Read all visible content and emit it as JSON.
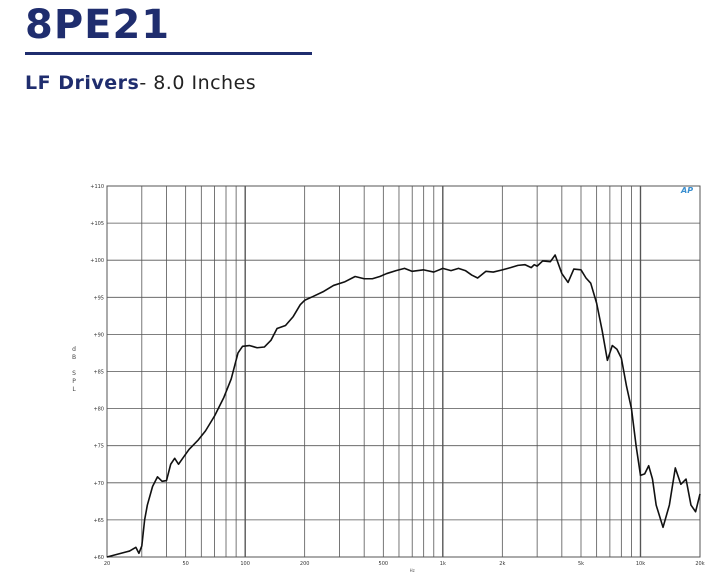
{
  "header": {
    "model": "8PE21",
    "category": "LF Drivers",
    "size": "- 8.0 Inches"
  },
  "logo": {
    "text": "AP",
    "color": "#3a8fd0"
  },
  "colors": {
    "brand": "#1f2d6e",
    "grid": "#555555",
    "curve": "#111111"
  },
  "chart_data": {
    "type": "line",
    "title": "",
    "xlabel": "Hz",
    "ylabel": "dB SPL",
    "x_scale": "log",
    "xlim": [
      20,
      20000
    ],
    "ylim": [
      60,
      110
    ],
    "grid": true,
    "y_ticks": [
      60,
      65,
      70,
      75,
      80,
      85,
      90,
      95,
      100,
      105,
      110
    ],
    "y_tick_labels": [
      "+60",
      "+65",
      "+70",
      "+75",
      "+80",
      "+85",
      "+90",
      "+95",
      "+100",
      "+105",
      "+110"
    ],
    "x_ticks": [
      20,
      50,
      100,
      200,
      500,
      1000,
      2000,
      5000,
      10000,
      20000
    ],
    "x_tick_labels": [
      "20",
      "50",
      "100",
      "200",
      "500",
      "1k",
      "2k",
      "5k",
      "10k",
      "20k"
    ],
    "series": [
      {
        "x": [
          20,
          26,
          28,
          29,
          30,
          31,
          32,
          34,
          36,
          38,
          40,
          42,
          44,
          46,
          48,
          52,
          58,
          63,
          70,
          78,
          85,
          92,
          97,
          105,
          115,
          125,
          135,
          145,
          160,
          175,
          190,
          200,
          220,
          250,
          280,
          320,
          360,
          400,
          440,
          480,
          520,
          580,
          640,
          700,
          800,
          900,
          1000,
          1100,
          1200,
          1300,
          1400,
          1500,
          1650,
          1800,
          2000,
          2200,
          2400,
          2600,
          2800,
          2900,
          3000,
          3200,
          3500,
          3700,
          4000,
          4300,
          4600,
          5000,
          5300,
          5600,
          6000,
          6400,
          6800,
          7200,
          7600,
          8000,
          8500,
          9000,
          9500,
          10000,
          10500,
          11000,
          11500,
          12000,
          13000,
          14000,
          15000,
          16000,
          17000,
          18000,
          19000,
          20000
        ],
        "y": [
          60,
          60.8,
          61.3,
          60.5,
          61.5,
          65,
          67,
          69.5,
          70.8,
          70.2,
          70.3,
          72.5,
          73.3,
          72.5,
          73.2,
          74.5,
          75.8,
          77,
          79,
          81.5,
          84,
          87.5,
          88.4,
          88.5,
          88.2,
          88.3,
          89.2,
          90.8,
          91.2,
          92.4,
          94,
          94.6,
          95.1,
          95.8,
          96.6,
          97.1,
          97.8,
          97.5,
          97.5,
          97.8,
          98.2,
          98.6,
          98.9,
          98.5,
          98.7,
          98.4,
          98.9,
          98.6,
          98.9,
          98.6,
          98.0,
          97.6,
          98.5,
          98.4,
          98.7,
          99.0,
          99.3,
          99.4,
          99.0,
          99.4,
          99.2,
          99.9,
          99.8,
          100.7,
          98.2,
          97.0,
          98.8,
          98.7,
          97.6,
          96.9,
          94.2,
          90.5,
          86.5,
          88.5,
          88.0,
          86.8,
          83,
          80,
          75,
          71,
          71.2,
          72.3,
          70.5,
          67,
          64,
          67,
          72.0,
          69.8,
          70.5,
          67,
          66.1,
          68.5
        ]
      }
    ]
  }
}
